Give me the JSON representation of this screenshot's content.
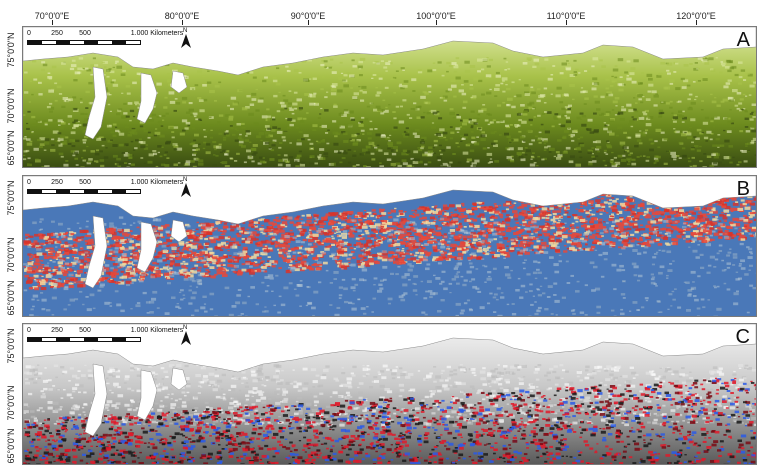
{
  "longitude_labels": [
    "70°0'0\"E",
    "80°0'0\"E",
    "90°0'0\"E",
    "100°0'0\"E",
    "110°0'0\"E",
    "120°0'0\"E"
  ],
  "latitude_labels": [
    "75°0'0\"N",
    "70°0'0\"N",
    "65°0'0\"N"
  ],
  "scale_bar": {
    "ticks": [
      "0",
      "250",
      "500",
      "1.000 Kilometers"
    ]
  },
  "north_arrow": {
    "label": "N",
    "icon": "north-arrow-icon"
  },
  "panels": [
    {
      "letter": "A",
      "legend_colors": [
        "#dfeaa6",
        "#a9c24a",
        "#6c8a1e",
        "#3a4d12"
      ]
    },
    {
      "letter": "B",
      "legend_colors": [
        "#4a78b8",
        "#9fb6c8",
        "#f0d9a0",
        "#e8483a"
      ]
    },
    {
      "letter": "C",
      "legend_colors": [
        "#f5f5f5",
        "#9a9a9a",
        "#1a1a1a",
        "#e01a2a",
        "#2a5ae8"
      ]
    }
  ]
}
